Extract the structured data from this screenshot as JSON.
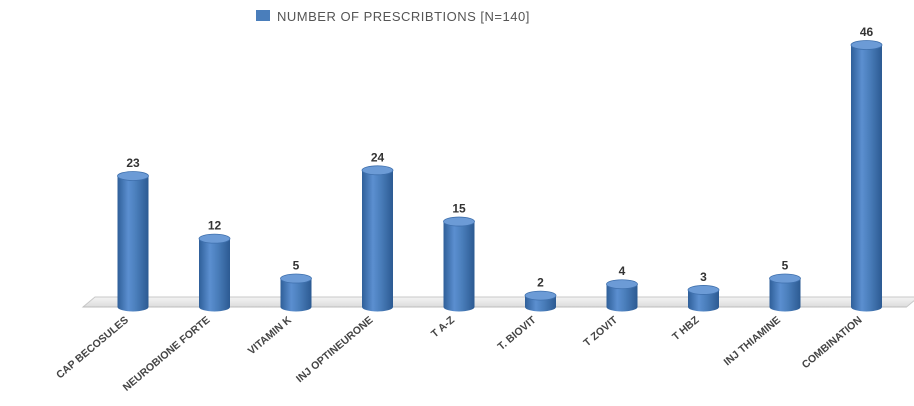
{
  "chart_data": {
    "type": "bar",
    "categories": [
      "CAP BECOSULES",
      "NEUROBIONE FORTE",
      "VITAMIN K",
      "INJ OPTINEURONE",
      "T A-Z",
      "T. BIOVIT",
      "T ZOVIT",
      "T HBZ",
      "INJ THIAMINE",
      "COMBINATION"
    ],
    "series": [
      {
        "name": "NUMBER OF PRESCRIBTIONS [N=140]",
        "values": [
          23,
          12,
          5,
          24,
          15,
          2,
          4,
          3,
          5,
          46
        ],
        "color": "#4a7ebb"
      }
    ],
    "data_labels": [
      "23",
      "12",
      "5",
      "24",
      "15",
      "2",
      "4",
      "3",
      "5",
      "46"
    ],
    "ylim": [
      0,
      46
    ],
    "legend_position": "top-center",
    "grid": false,
    "style": "3d-cylinder"
  }
}
